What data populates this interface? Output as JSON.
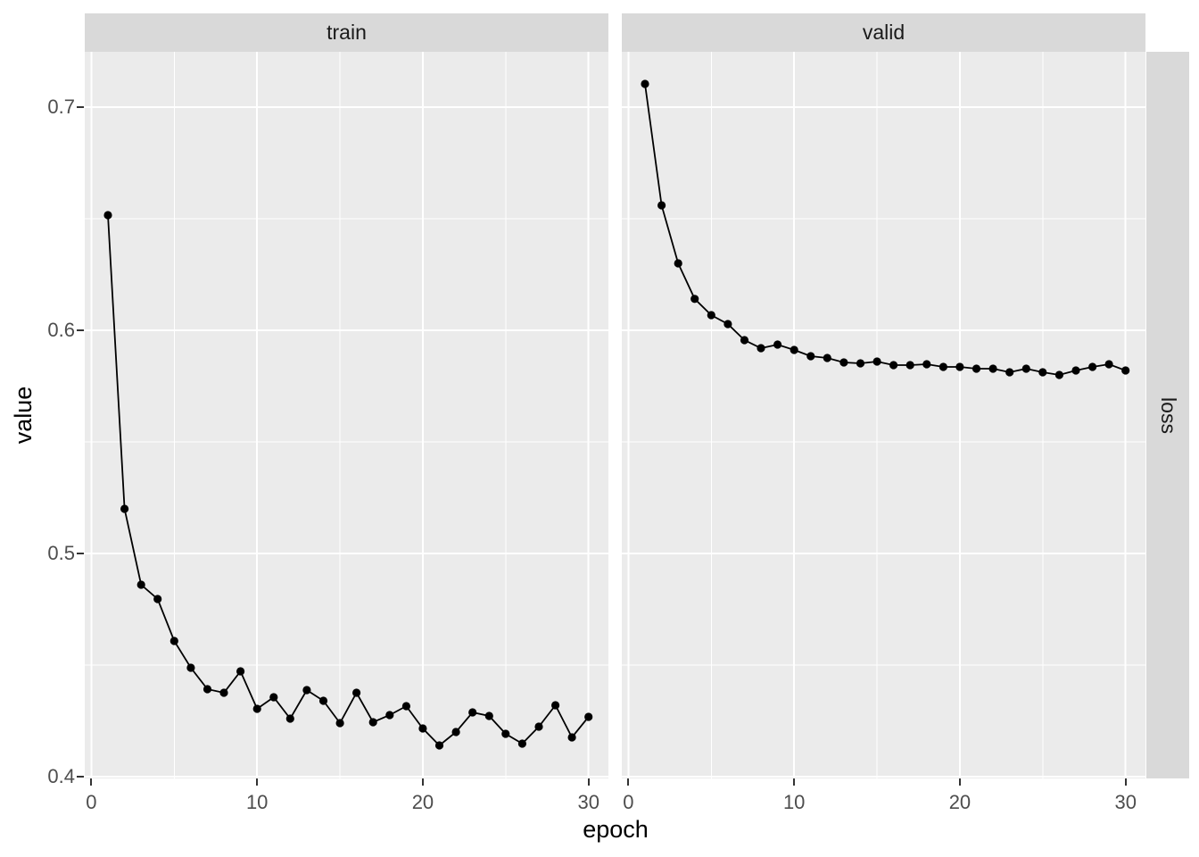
{
  "colors": {
    "panel_background": "#EBEBEB",
    "strip_background": "#D9D9D9",
    "gridline": "#FFFFFF",
    "line": "#000000",
    "point": "#000000",
    "axis_text": "#4D4D4D",
    "tick_mark": "#333333",
    "title_text": "#000000",
    "figure_background": "#FFFFFF"
  },
  "chart_data": {
    "type": "line",
    "title": "",
    "xlabel": "epoch",
    "ylabel": "value",
    "facet_variable_label": "loss",
    "facets": [
      "train",
      "valid"
    ],
    "legend": "none",
    "grid": true,
    "x": [
      1,
      2,
      3,
      4,
      5,
      6,
      7,
      8,
      9,
      10,
      11,
      12,
      13,
      14,
      15,
      16,
      17,
      18,
      19,
      20,
      21,
      22,
      23,
      24,
      25,
      26,
      27,
      28,
      29,
      30
    ],
    "series": [
      {
        "name": "train",
        "facet": "train",
        "values": [
          0.6516,
          0.52,
          0.486,
          0.4796,
          0.4608,
          0.4488,
          0.4392,
          0.4376,
          0.4472,
          0.4304,
          0.4356,
          0.426,
          0.4388,
          0.434,
          0.424,
          0.4376,
          0.4244,
          0.4276,
          0.4316,
          0.4216,
          0.414,
          0.42,
          0.4288,
          0.4272,
          0.4192,
          0.4148,
          0.4224,
          0.432,
          0.4176,
          0.4268
        ]
      },
      {
        "name": "valid",
        "facet": "valid",
        "values": [
          0.7104,
          0.656,
          0.63,
          0.6141,
          0.6068,
          0.6028,
          0.5956,
          0.592,
          0.5936,
          0.5912,
          0.5884,
          0.5876,
          0.5856,
          0.5852,
          0.586,
          0.5844,
          0.5844,
          0.5848,
          0.5836,
          0.5836,
          0.5828,
          0.5828,
          0.5812,
          0.5828,
          0.5812,
          0.58,
          0.582,
          0.5836,
          0.5848,
          0.582
        ]
      }
    ],
    "x_ticks": [
      0,
      10,
      20,
      30
    ],
    "x_tick_labels": [
      "0",
      "10",
      "20",
      "30"
    ],
    "x_minor_ticks": [
      5,
      15,
      25
    ],
    "y_ticks": [
      0.7,
      0.6,
      0.5,
      0.4
    ],
    "y_tick_labels": [
      "0.7",
      "0.6",
      "0.5",
      "0.4"
    ],
    "y_minor_ticks": [
      0.65,
      0.55,
      0.45
    ],
    "xlim": [
      -0.4,
      31.2
    ],
    "ylim": [
      0.3992,
      0.7248
    ]
  }
}
